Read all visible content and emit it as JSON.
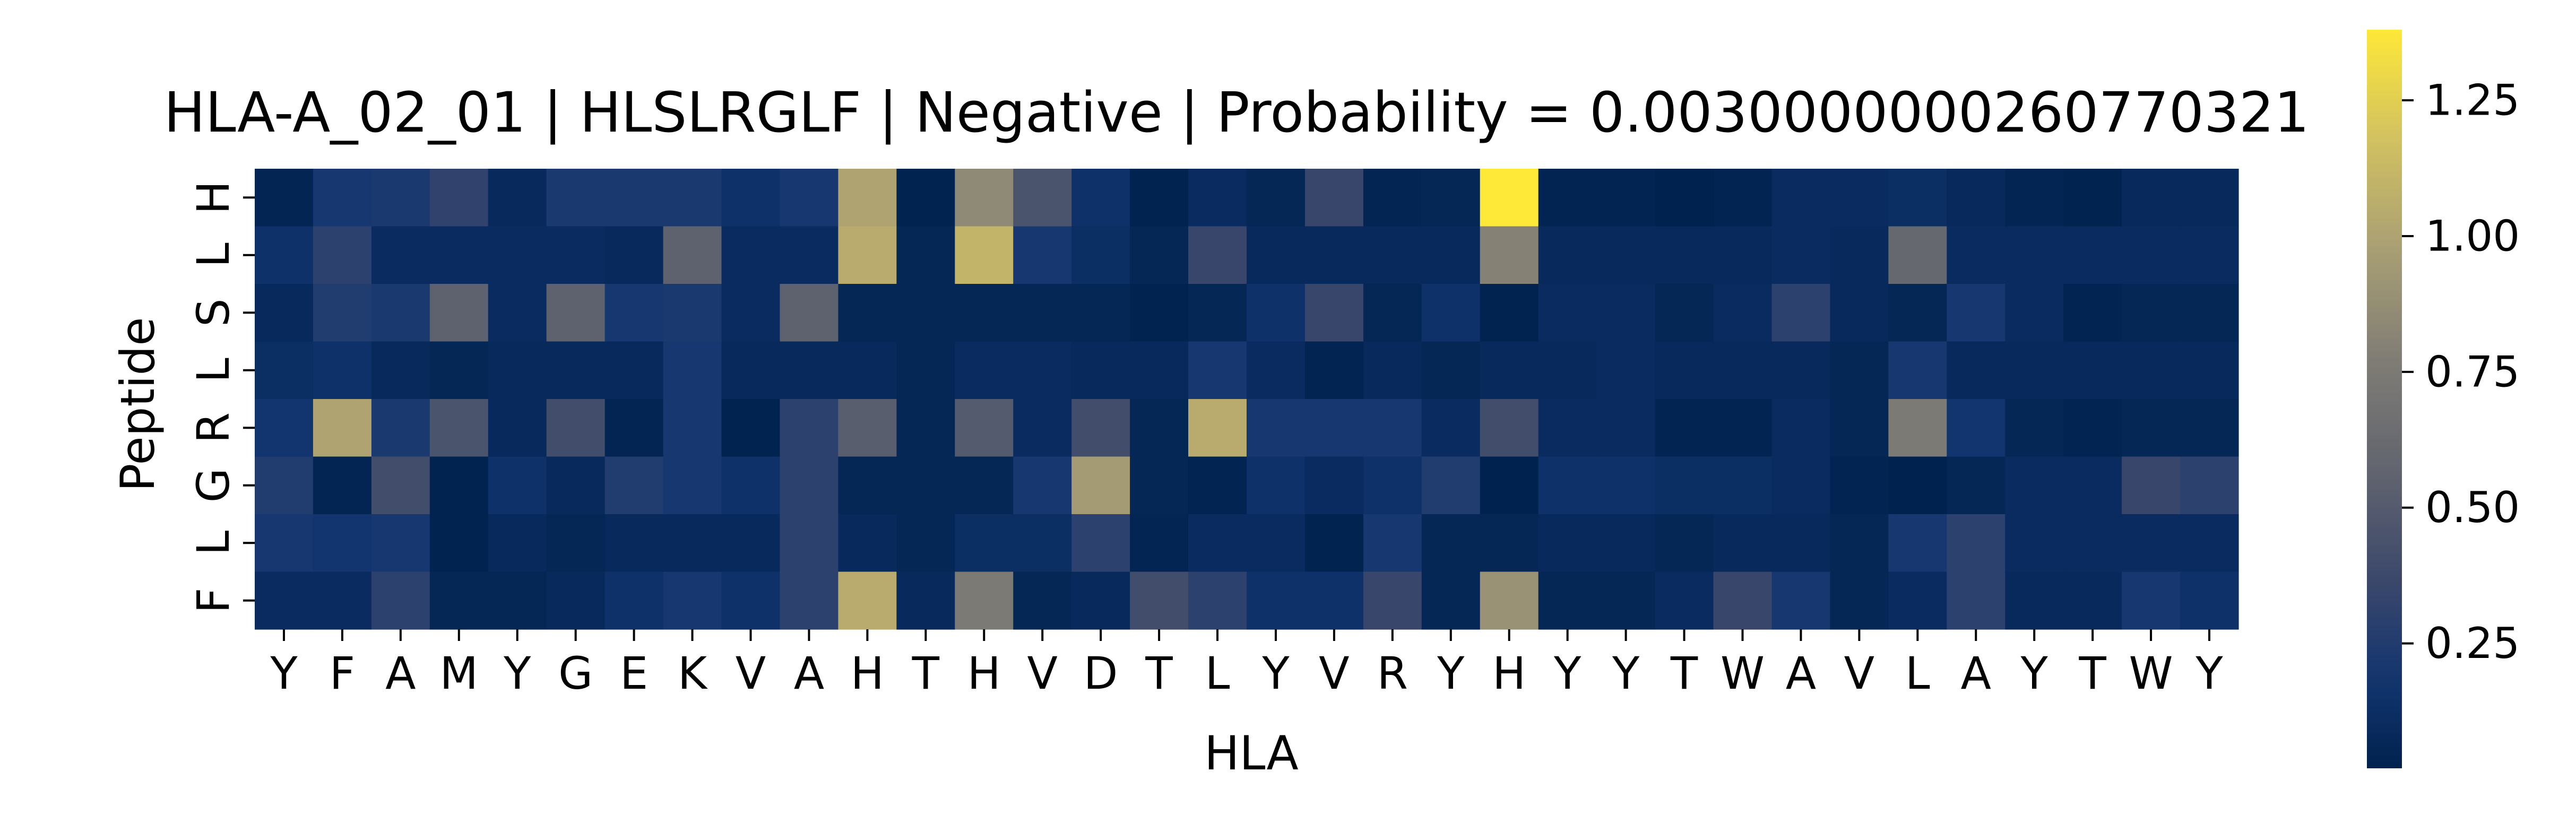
{
  "chart_data": {
    "type": "heatmap",
    "title": "HLA-A_02_01 | HLSLRGLF | Negative | Probability = 0.0030000000260770321",
    "xlabel": "HLA",
    "ylabel": "Peptide",
    "x_labels": [
      "Y",
      "F",
      "A",
      "M",
      "Y",
      "G",
      "E",
      "K",
      "V",
      "A",
      "H",
      "T",
      "H",
      "V",
      "D",
      "T",
      "L",
      "Y",
      "V",
      "R",
      "Y",
      "H",
      "Y",
      "Y",
      "T",
      "W",
      "A",
      "V",
      "L",
      "A",
      "Y",
      "T",
      "W",
      "Y"
    ],
    "y_labels": [
      "H",
      "L",
      "S",
      "L",
      "R",
      "G",
      "L",
      "F"
    ],
    "colormap": "cividis",
    "colorbar": {
      "min": 0.02,
      "max": 1.38,
      "ticks": [
        "0.25",
        "0.50",
        "0.75",
        "1.00",
        "1.25"
      ],
      "tick_values": [
        0.25,
        0.5,
        0.75,
        1.0,
        1.25
      ]
    },
    "grid": false,
    "values": [
      [
        0.05,
        0.2,
        0.22,
        0.32,
        0.08,
        0.22,
        0.22,
        0.22,
        0.15,
        0.2,
        1.0,
        0.03,
        0.85,
        0.45,
        0.15,
        0.03,
        0.1,
        0.06,
        0.35,
        0.05,
        0.06,
        1.38,
        0.04,
        0.04,
        0.02,
        0.04,
        0.1,
        0.1,
        0.12,
        0.08,
        0.05,
        0.03,
        0.08,
        0.08
      ],
      [
        0.15,
        0.3,
        0.1,
        0.1,
        0.1,
        0.1,
        0.08,
        0.55,
        0.1,
        0.1,
        1.05,
        0.06,
        1.1,
        0.2,
        0.12,
        0.06,
        0.35,
        0.08,
        0.08,
        0.08,
        0.08,
        0.8,
        0.08,
        0.08,
        0.08,
        0.08,
        0.1,
        0.08,
        0.6,
        0.1,
        0.1,
        0.1,
        0.1,
        0.1
      ],
      [
        0.08,
        0.25,
        0.22,
        0.55,
        0.1,
        0.55,
        0.2,
        0.22,
        0.1,
        0.55,
        0.06,
        0.06,
        0.06,
        0.06,
        0.06,
        0.03,
        0.06,
        0.15,
        0.35,
        0.06,
        0.15,
        0.03,
        0.1,
        0.1,
        0.06,
        0.1,
        0.3,
        0.08,
        0.06,
        0.2,
        0.1,
        0.04,
        0.06,
        0.06
      ],
      [
        0.12,
        0.15,
        0.08,
        0.06,
        0.08,
        0.08,
        0.08,
        0.2,
        0.08,
        0.08,
        0.08,
        0.06,
        0.1,
        0.1,
        0.08,
        0.08,
        0.2,
        0.1,
        0.04,
        0.08,
        0.06,
        0.08,
        0.08,
        0.1,
        0.08,
        0.08,
        0.08,
        0.06,
        0.2,
        0.08,
        0.08,
        0.08,
        0.08,
        0.08
      ],
      [
        0.18,
        1.0,
        0.22,
        0.45,
        0.08,
        0.4,
        0.05,
        0.2,
        0.03,
        0.3,
        0.52,
        0.06,
        0.5,
        0.1,
        0.4,
        0.06,
        1.05,
        0.2,
        0.2,
        0.2,
        0.1,
        0.4,
        0.1,
        0.1,
        0.04,
        0.04,
        0.1,
        0.06,
        0.75,
        0.18,
        0.06,
        0.04,
        0.06,
        0.06
      ],
      [
        0.25,
        0.05,
        0.4,
        0.03,
        0.15,
        0.08,
        0.25,
        0.2,
        0.15,
        0.3,
        0.06,
        0.06,
        0.06,
        0.2,
        0.95,
        0.06,
        0.04,
        0.15,
        0.1,
        0.15,
        0.25,
        0.02,
        0.15,
        0.15,
        0.12,
        0.12,
        0.1,
        0.04,
        0.02,
        0.06,
        0.1,
        0.1,
        0.35,
        0.3
      ],
      [
        0.2,
        0.18,
        0.2,
        0.03,
        0.08,
        0.06,
        0.08,
        0.08,
        0.08,
        0.3,
        0.08,
        0.06,
        0.12,
        0.12,
        0.3,
        0.05,
        0.1,
        0.1,
        0.03,
        0.2,
        0.06,
        0.06,
        0.08,
        0.08,
        0.06,
        0.08,
        0.08,
        0.06,
        0.2,
        0.3,
        0.1,
        0.1,
        0.1,
        0.1
      ],
      [
        0.1,
        0.1,
        0.3,
        0.06,
        0.06,
        0.08,
        0.15,
        0.2,
        0.15,
        0.3,
        1.05,
        0.08,
        0.75,
        0.06,
        0.08,
        0.4,
        0.3,
        0.15,
        0.15,
        0.35,
        0.06,
        0.9,
        0.06,
        0.06,
        0.1,
        0.35,
        0.2,
        0.06,
        0.1,
        0.3,
        0.08,
        0.08,
        0.2,
        0.15
      ]
    ]
  }
}
